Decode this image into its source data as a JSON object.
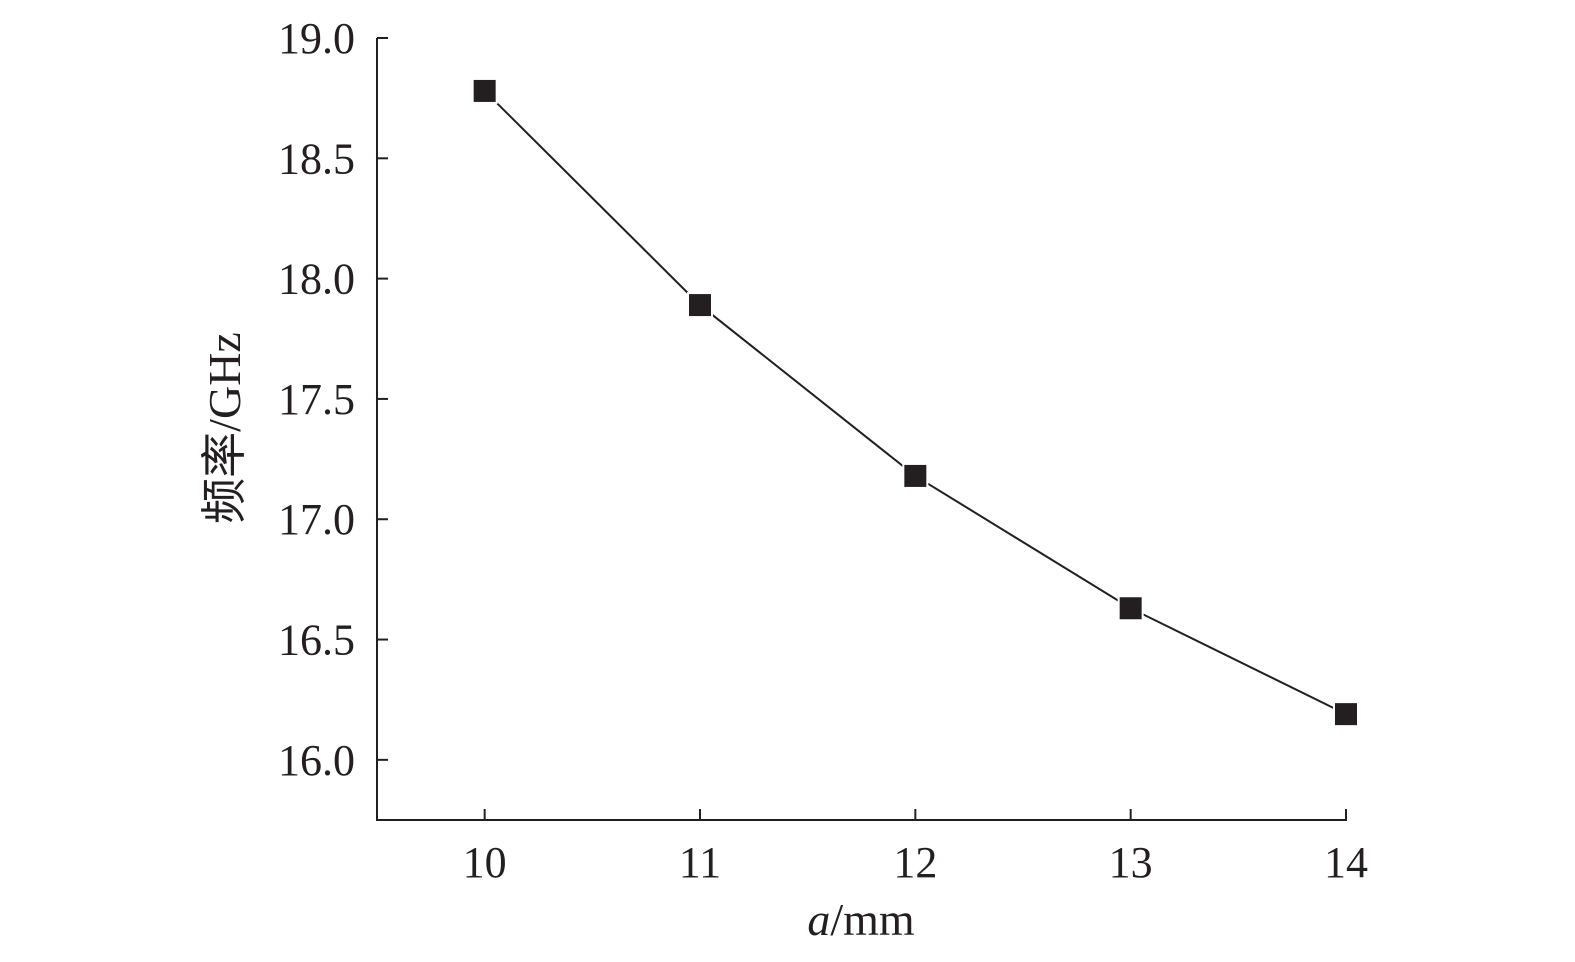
{
  "chart_data": {
    "type": "line",
    "title": "",
    "xlabel_italic": "a",
    "xlabel_rest": "/mm",
    "ylabel": "频率/GHz",
    "x": [
      10,
      11,
      12,
      13,
      14
    ],
    "series": [
      {
        "values": [
          18.78,
          17.89,
          17.18,
          16.63,
          16.19
        ],
        "marker": "square",
        "color": "#231f20"
      }
    ],
    "xlim": [
      9.5,
      14
    ],
    "ylim": [
      15.75,
      19.0
    ],
    "xticks": [
      "10",
      "11",
      "12",
      "13",
      "14"
    ],
    "yticks": [
      "16.0",
      "16.5",
      "17.0",
      "17.5",
      "18.0",
      "18.5",
      "19.0"
    ],
    "grid": false,
    "legend": "none"
  }
}
